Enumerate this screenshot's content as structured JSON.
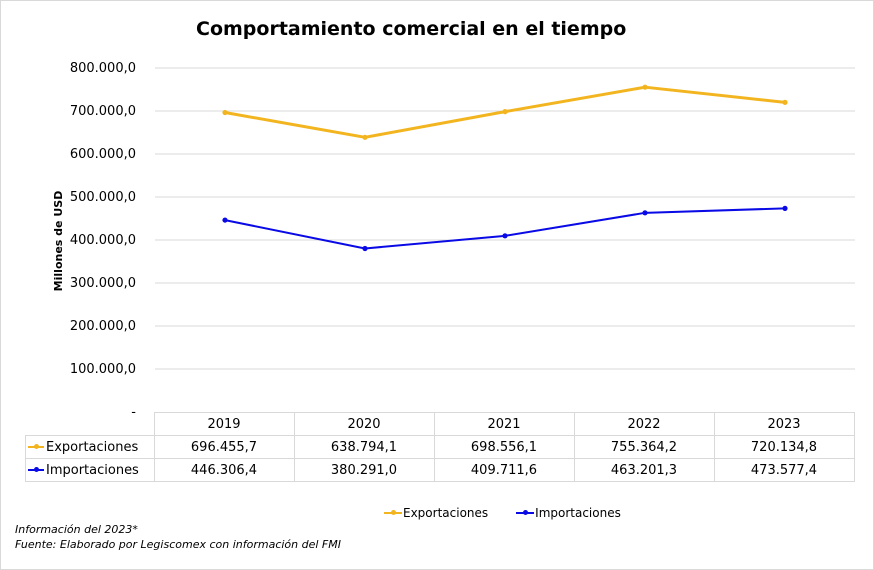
{
  "chart_data": {
    "type": "line",
    "title": "Comportamiento comercial en el tiempo",
    "ylabel": "Millones de USD",
    "xlabel": "",
    "categories": [
      "2019",
      "2020",
      "2021",
      "2022",
      "2023"
    ],
    "ylim": [
      0,
      800000
    ],
    "yticks": [
      0,
      100000,
      200000,
      300000,
      400000,
      500000,
      600000,
      700000,
      800000
    ],
    "ytick_labels": [
      "-",
      "100.000,0",
      "200.000,0",
      "300.000,0",
      "400.000,0",
      "500.000,0",
      "600.000,0",
      "700.000,0",
      "800.000,0"
    ],
    "grid": true,
    "legend_position": "bottom",
    "series": [
      {
        "name": "Exportaciones",
        "color": "#f2b51f",
        "values": [
          696455.7,
          638794.1,
          698556.1,
          755364.2,
          720134.8
        ],
        "labels": [
          "696.455,7",
          "638.794,1",
          "698.556,1",
          "755.364,2",
          "720.134,8"
        ]
      },
      {
        "name": "Importaciones",
        "color": "#0a0ae6",
        "values": [
          446306.4,
          380291.0,
          409711.6,
          463201.3,
          473577.4
        ],
        "labels": [
          "446.306,4",
          "380.291,0",
          "409.711,6",
          "463.201,3",
          "473.577,4"
        ]
      }
    ]
  },
  "notes": {
    "line1": "Información del 2023*",
    "line2": "Fuente: Elaborado por Legiscomex con información del FMI"
  }
}
